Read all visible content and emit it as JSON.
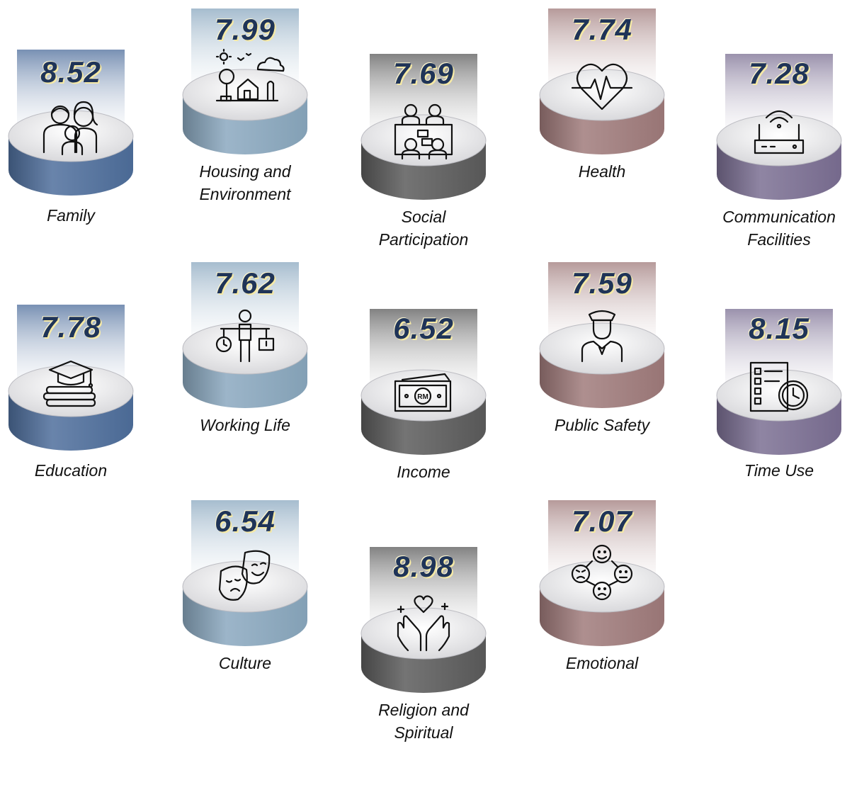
{
  "items": [
    {
      "value": "8.52",
      "label": [
        "Family"
      ],
      "color": "#4e6e9c",
      "icon": "family-icon"
    },
    {
      "value": "7.99",
      "label": [
        "Housing and",
        "Environment"
      ],
      "color": "#8aa8bf",
      "icon": "house-environment-icon"
    },
    {
      "value": "7.69",
      "label": [
        "Social",
        "Participation"
      ],
      "color": "#5c5c5c",
      "icon": "meeting-people-icon"
    },
    {
      "value": "7.74",
      "label": [
        "Health"
      ],
      "color": "#a07b7b",
      "icon": "heartbeat-icon"
    },
    {
      "value": "7.28",
      "label": [
        "Communication",
        "Facilities"
      ],
      "color": "#7b6f93",
      "icon": "wifi-router-icon"
    },
    {
      "value": "7.78",
      "label": [
        "Education"
      ],
      "color": "#4e6e9c",
      "icon": "graduation-cap-books-icon"
    },
    {
      "value": "7.62",
      "label": [
        "Working Life"
      ],
      "color": "#8aa8bf",
      "icon": "work-life-balance-icon"
    },
    {
      "value": "6.52",
      "label": [
        "Income"
      ],
      "color": "#5c5c5c",
      "icon": "money-banknote-icon",
      "icon_text": "RM"
    },
    {
      "value": "7.59",
      "label": [
        "Public Safety"
      ],
      "color": "#a07b7b",
      "icon": "police-officer-icon"
    },
    {
      "value": "8.15",
      "label": [
        "Time Use"
      ],
      "color": "#7b6f93",
      "icon": "checklist-clock-icon"
    },
    {
      "value": "6.54",
      "label": [
        "Culture"
      ],
      "color": "#8aa8bf",
      "icon": "theatre-masks-icon"
    },
    {
      "value": "8.98",
      "label": [
        "Religion and",
        "Spiritual"
      ],
      "color": "#5c5c5c",
      "icon": "praying-hands-heart-icon"
    },
    {
      "value": "7.07",
      "label": [
        "Emotional"
      ],
      "color": "#a07b7b",
      "icon": "emotions-faces-icon"
    }
  ]
}
